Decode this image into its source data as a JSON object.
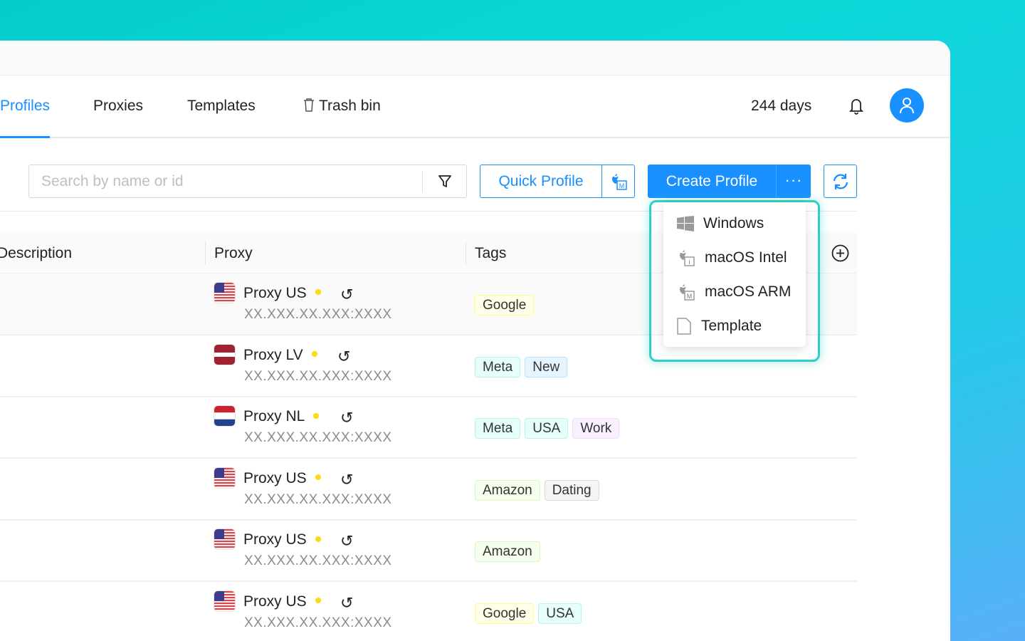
{
  "nav": {
    "tabs": [
      {
        "label": "Profiles",
        "active": true
      },
      {
        "label": "Proxies"
      },
      {
        "label": "Templates"
      },
      {
        "label": "Trash bin",
        "icon": "trash-icon"
      }
    ],
    "days_left": "244 days"
  },
  "toolbar": {
    "search_placeholder": "Search by name or id",
    "search_value": "",
    "quick_profile": "Quick Profile",
    "create_profile": "Create Profile",
    "more": "···"
  },
  "table": {
    "columns": [
      "Description",
      "Proxy",
      "Tags"
    ],
    "rows": [
      {
        "proxy": "Proxy US",
        "flag": "us",
        "address": "XX.XXX.XX.XXX:XXXX",
        "tags": [
          {
            "label": "Google",
            "color": "yellow"
          }
        ]
      },
      {
        "proxy": "Proxy LV",
        "flag": "lv",
        "address": "XX.XXX.XX.XXX:XXXX",
        "tags": [
          {
            "label": "Meta",
            "color": "cyan"
          },
          {
            "label": "New",
            "color": "blue"
          }
        ]
      },
      {
        "proxy": "Proxy NL",
        "flag": "nl",
        "address": "XX.XXX.XX.XXX:XXXX",
        "tags": [
          {
            "label": "Meta",
            "color": "cyan"
          },
          {
            "label": "USA",
            "color": "cyan"
          },
          {
            "label": "Work",
            "color": "purple"
          }
        ]
      },
      {
        "proxy": "Proxy US",
        "flag": "us",
        "address": "XX.XXX.XX.XXX:XXXX",
        "tags": [
          {
            "label": "Amazon",
            "color": "green"
          },
          {
            "label": "Dating",
            "color": "gray"
          }
        ]
      },
      {
        "proxy": "Proxy US",
        "flag": "us",
        "address": "XX.XXX.XX.XXX:XXXX",
        "tags": [
          {
            "label": "Amazon",
            "color": "green"
          }
        ]
      },
      {
        "proxy": "Proxy US",
        "flag": "us",
        "address": "XX.XXX.XX.XXX:XXXX",
        "tags": [
          {
            "label": "Google",
            "color": "yellow"
          },
          {
            "label": "USA",
            "color": "cyan"
          }
        ]
      }
    ]
  },
  "dropdown": {
    "items": [
      {
        "label": "Windows",
        "icon": "windows-icon"
      },
      {
        "label": "macOS Intel",
        "icon": "apple-intel-icon"
      },
      {
        "label": "macOS ARM",
        "icon": "apple-arm-icon"
      },
      {
        "label": "Template",
        "icon": "file-icon"
      }
    ]
  },
  "colors": {
    "accent": "#1890ff",
    "status_dot": "#fadb14",
    "highlight": "#2fcfc8"
  }
}
